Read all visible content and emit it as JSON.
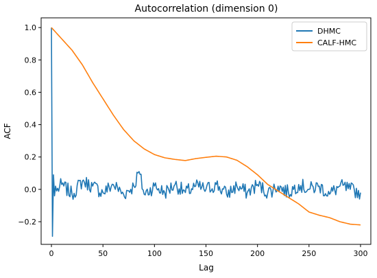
{
  "chart_data": {
    "type": "line",
    "title": "Autocorrelation (dimension 0)",
    "xlabel": "Lag",
    "ylabel": "ACF",
    "xlim": [
      -10,
      310
    ],
    "ylim": [
      -0.34,
      1.06
    ],
    "xticks": [
      0,
      50,
      100,
      150,
      200,
      250,
      300
    ],
    "yticks": [
      -0.2,
      0.0,
      0.2,
      0.4,
      0.6,
      0.8,
      1.0
    ],
    "xtick_labels": [
      "0",
      "50",
      "100",
      "150",
      "200",
      "250",
      "300"
    ],
    "ytick_labels": [
      "−0.2",
      "0.0",
      "0.2",
      "0.4",
      "0.6",
      "0.8",
      "1.0"
    ],
    "grid": false,
    "legend_position": "top-right",
    "series": [
      {
        "name": "DHMC",
        "color": "#1f77b4",
        "noise": true,
        "points": [
          [
            0,
            1.0
          ],
          [
            1,
            -0.29
          ],
          [
            2,
            0.09
          ],
          [
            3,
            -0.04
          ],
          [
            4,
            0.02
          ],
          [
            5,
            -0.01
          ],
          [
            10,
            0.03
          ],
          [
            20,
            -0.03
          ],
          [
            30,
            0.05
          ],
          [
            40,
            0.02
          ],
          [
            50,
            -0.02
          ],
          [
            60,
            0.03
          ],
          [
            70,
            -0.03
          ],
          [
            80,
            0.02
          ],
          [
            85,
            0.11
          ],
          [
            90,
            -0.03
          ],
          [
            100,
            0.02
          ],
          [
            110,
            -0.02
          ],
          [
            120,
            0.03
          ],
          [
            130,
            -0.02
          ],
          [
            140,
            0.02
          ],
          [
            150,
            0.0
          ],
          [
            160,
            0.03
          ],
          [
            170,
            -0.03
          ],
          [
            180,
            0.02
          ],
          [
            190,
            -0.02
          ],
          [
            200,
            0.03
          ],
          [
            210,
            -0.02
          ],
          [
            220,
            0.02
          ],
          [
            230,
            -0.02
          ],
          [
            240,
            0.03
          ],
          [
            250,
            0.0
          ],
          [
            260,
            0.02
          ],
          [
            270,
            -0.03
          ],
          [
            280,
            0.02
          ],
          [
            290,
            0.0
          ],
          [
            300,
            -0.02
          ]
        ]
      },
      {
        "name": "CALF-HMC",
        "color": "#ff7f0e",
        "noise": false,
        "points": [
          [
            0,
            1.0
          ],
          [
            10,
            0.93
          ],
          [
            20,
            0.86
          ],
          [
            30,
            0.77
          ],
          [
            40,
            0.66
          ],
          [
            50,
            0.56
          ],
          [
            60,
            0.46
          ],
          [
            70,
            0.37
          ],
          [
            80,
            0.3
          ],
          [
            90,
            0.25
          ],
          [
            100,
            0.215
          ],
          [
            110,
            0.195
          ],
          [
            120,
            0.185
          ],
          [
            130,
            0.178
          ],
          [
            140,
            0.19
          ],
          [
            150,
            0.198
          ],
          [
            160,
            0.205
          ],
          [
            170,
            0.2
          ],
          [
            180,
            0.18
          ],
          [
            190,
            0.14
          ],
          [
            200,
            0.09
          ],
          [
            210,
            0.03
          ],
          [
            220,
            -0.01
          ],
          [
            230,
            -0.05
          ],
          [
            240,
            -0.09
          ],
          [
            250,
            -0.14
          ],
          [
            260,
            -0.16
          ],
          [
            270,
            -0.175
          ],
          [
            280,
            -0.2
          ],
          [
            290,
            -0.215
          ],
          [
            300,
            -0.22
          ]
        ]
      }
    ]
  }
}
